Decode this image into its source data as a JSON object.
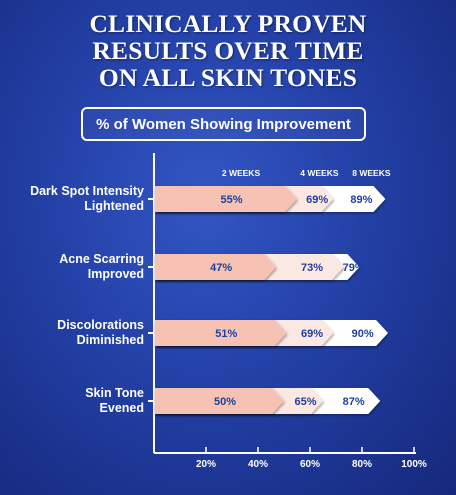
{
  "header": {
    "title_lines": [
      "CLINICALLY PROVEN",
      "RESULTS OVER TIME",
      "ON ALL SKIN TONES"
    ],
    "subtitle": "% of Women Showing Improvement"
  },
  "colors": {
    "week2": "#f5c2b3",
    "week4": "#fbe8e2",
    "week8": "#ffffff",
    "label_text": "#1e3f9e",
    "background": "#2340a6"
  },
  "chart_data": {
    "type": "bar",
    "orientation": "horizontal",
    "stacked_progression": true,
    "title": "CLINICALLY PROVEN RESULTS OVER TIME ON ALL SKIN TONES",
    "subtitle": "% of Women Showing Improvement",
    "categories": [
      [
        "Dark Spot Intensity",
        "Lightened"
      ],
      [
        "Acne Scarring",
        "Improved"
      ],
      [
        "Discolorations",
        "Diminished"
      ],
      [
        "Skin Tone",
        "Evened"
      ]
    ],
    "series": [
      {
        "name": "2 WEEKS",
        "values": [
          55,
          47,
          51,
          50
        ]
      },
      {
        "name": "4 WEEKS",
        "values": [
          69,
          73,
          69,
          65
        ]
      },
      {
        "name": "8 WEEKS",
        "values": [
          89,
          79,
          90,
          87
        ]
      }
    ],
    "value_suffix": "%",
    "xlim": [
      0,
      100
    ],
    "xticks": [
      20,
      40,
      60,
      80,
      100
    ],
    "xtick_labels": [
      "20%",
      "40%",
      "60%",
      "80%",
      "100%"
    ],
    "legend_position": "top"
  }
}
